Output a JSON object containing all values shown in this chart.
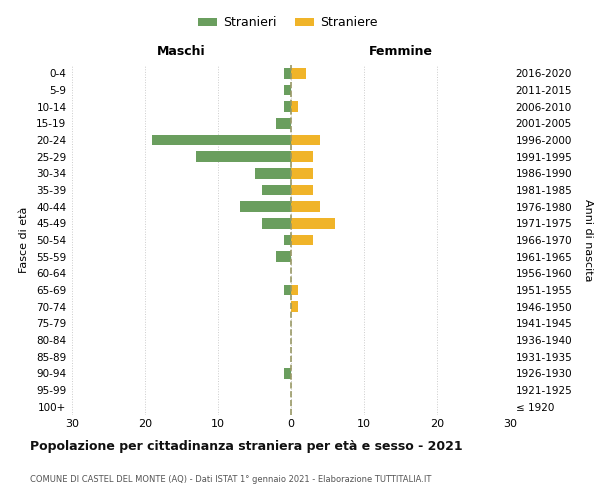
{
  "age_groups": [
    "100+",
    "95-99",
    "90-94",
    "85-89",
    "80-84",
    "75-79",
    "70-74",
    "65-69",
    "60-64",
    "55-59",
    "50-54",
    "45-49",
    "40-44",
    "35-39",
    "30-34",
    "25-29",
    "20-24",
    "15-19",
    "10-14",
    "5-9",
    "0-4"
  ],
  "birth_years": [
    "≤ 1920",
    "1921-1925",
    "1926-1930",
    "1931-1935",
    "1936-1940",
    "1941-1945",
    "1946-1950",
    "1951-1955",
    "1956-1960",
    "1961-1965",
    "1966-1970",
    "1971-1975",
    "1976-1980",
    "1981-1985",
    "1986-1990",
    "1991-1995",
    "1996-2000",
    "2001-2005",
    "2006-2010",
    "2011-2015",
    "2016-2020"
  ],
  "males": [
    0,
    0,
    1,
    0,
    0,
    0,
    0,
    1,
    0,
    2,
    1,
    4,
    7,
    4,
    5,
    13,
    19,
    2,
    1,
    1,
    1
  ],
  "females": [
    0,
    0,
    0,
    0,
    0,
    0,
    1,
    1,
    0,
    0,
    3,
    6,
    4,
    3,
    3,
    3,
    4,
    0,
    1,
    0,
    2
  ],
  "male_color": "#6a9e5e",
  "female_color": "#f0b429",
  "title": "Popolazione per cittadinanza straniera per età e sesso - 2021",
  "subtitle": "COMUNE DI CASTEL DEL MONTE (AQ) - Dati ISTAT 1° gennaio 2021 - Elaborazione TUTTITALIA.IT",
  "xlabel_left": "Maschi",
  "xlabel_right": "Femmine",
  "ylabel_left": "Fasce di età",
  "ylabel_right": "Anni di nascita",
  "legend_male": "Stranieri",
  "legend_female": "Straniere",
  "xlim": 30,
  "background_color": "#ffffff",
  "grid_color": "#cccccc",
  "dashed_line_color": "#999966"
}
